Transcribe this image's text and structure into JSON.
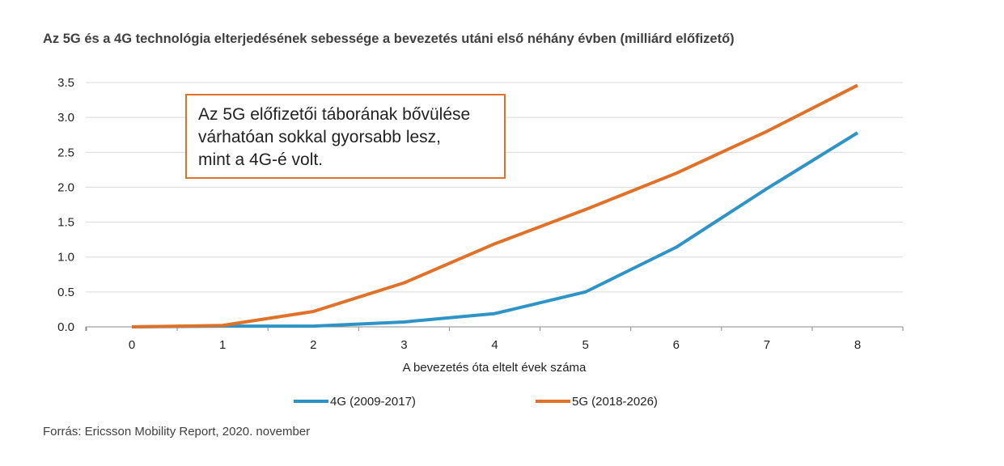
{
  "chart_data": {
    "type": "line",
    "title": "Az 5G és a 4G technológia elterjedésének sebessége a bevezetés utáni első néhány évben (milliárd előfizető)",
    "xlabel": "A bevezetés óta eltelt évek száma",
    "ylabel": "",
    "x": [
      0,
      1,
      2,
      3,
      4,
      5,
      6,
      7,
      8
    ],
    "x_tick_labels": [
      "0",
      "1",
      "2",
      "3",
      "4",
      "5",
      "6",
      "7",
      "8"
    ],
    "y_tick_labels": [
      "0.0",
      "0.5",
      "1.0",
      "1.5",
      "2.0",
      "2.5",
      "3.0",
      "3.5"
    ],
    "y_ticks": [
      0,
      0.5,
      1.0,
      1.5,
      2.0,
      2.5,
      3.0,
      3.5
    ],
    "ylim": [
      0,
      3.5
    ],
    "grid": "horizontal",
    "legend_position": "bottom",
    "series": [
      {
        "name": "4G (2009-2017)",
        "color": "#2e94c6",
        "values": [
          0.0,
          0.01,
          0.01,
          0.07,
          0.19,
          0.5,
          1.14,
          1.98,
          2.78
        ]
      },
      {
        "name": "5G (2018-2026)",
        "color": "#e07129",
        "values": [
          0.0,
          0.02,
          0.22,
          0.63,
          1.19,
          1.68,
          2.2,
          2.8,
          3.46
        ]
      }
    ],
    "annotation": "Az 5G előfizetői táborának bővülése\nvárhatóan sokkal gyorsabb lesz,\nmint a 4G-é volt."
  },
  "source": "Forrás: Ericsson Mobility Report, 2020. november"
}
